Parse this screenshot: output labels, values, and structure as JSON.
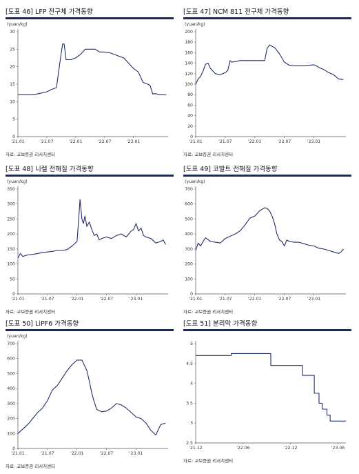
{
  "source_label": "자료: 교보증권 리서치센터",
  "chart_data": [
    {
      "type": "line",
      "title": "[도표 46] LFP 전구체 가격동향",
      "unit_label": "(yuan/kg)",
      "xlabels": [
        "'21.01",
        "'21.07",
        "'22.01",
        "'22.07",
        "'23.01"
      ],
      "xtick_pos": [
        0,
        6,
        12,
        18,
        24
      ],
      "x_range": [
        0,
        31.2
      ],
      "ylim": [
        0,
        30
      ],
      "yticks": [
        0,
        5,
        10,
        15,
        20,
        25,
        30
      ],
      "color": "#1f2f66",
      "series": [
        {
          "x": [
            0,
            3,
            4,
            5,
            6,
            7,
            8,
            9,
            9.3,
            9.6,
            10,
            11,
            12,
            13,
            14,
            15,
            16,
            17,
            18,
            19,
            20,
            21,
            22,
            23,
            24,
            25,
            26,
            27,
            27.5,
            28,
            28.5,
            29.5,
            30.8
          ],
          "y": [
            12,
            12,
            12.2,
            12.5,
            12.8,
            13.5,
            14,
            24,
            26.5,
            26.5,
            22,
            22,
            22.5,
            23.5,
            25,
            25,
            25,
            24.2,
            24.2,
            24,
            23.5,
            23,
            22.5,
            21,
            19.5,
            18.5,
            15.5,
            15,
            14.5,
            12.2,
            12.3,
            12,
            12
          ]
        }
      ]
    },
    {
      "type": "line",
      "title": "[도표 47] NCM 811 전구체 가격동향",
      "unit_label": "(yuan/kg)",
      "xlabels": [
        "'21.01",
        "'21.07",
        "'22.01",
        "'22.07",
        "'23.01"
      ],
      "xtick_pos": [
        0,
        6,
        12,
        18,
        24
      ],
      "x_range": [
        0,
        30.5
      ],
      "ylim": [
        0,
        200
      ],
      "yticks": [
        0,
        20,
        40,
        60,
        80,
        100,
        120,
        140,
        160,
        180,
        200
      ],
      "color": "#1f2f66",
      "series": [
        {
          "x": [
            0,
            0.5,
            1,
            1.5,
            2,
            2.5,
            3,
            4,
            5,
            6,
            6.5,
            7,
            7.3,
            8,
            9,
            10,
            11,
            12,
            13,
            14,
            14.5,
            15,
            15.5,
            16,
            17,
            18,
            19,
            20,
            21,
            22,
            23,
            24,
            24.5,
            25,
            26,
            27,
            28,
            29,
            30
          ],
          "y": [
            100,
            110,
            115,
            125,
            138,
            140,
            130,
            120,
            118,
            122,
            126,
            145,
            142,
            143,
            145,
            145,
            145,
            145,
            145,
            145,
            168,
            175,
            172,
            170,
            158,
            142,
            136,
            135,
            135,
            135,
            136,
            137,
            135,
            132,
            128,
            122,
            118,
            110,
            109
          ]
        }
      ]
    },
    {
      "type": "line",
      "title": "[도표 48] 니켈 전해질 가격동향",
      "unit_label": "(yuan/kg)",
      "xlabels": [
        "'21.01",
        "'21.07",
        "'22.01",
        "'22.07",
        "'23.01"
      ],
      "xtick_pos": [
        0,
        6,
        12,
        18,
        24
      ],
      "x_range": [
        0,
        30.5
      ],
      "ylim": [
        0,
        350
      ],
      "yticks": [
        0,
        50,
        100,
        150,
        200,
        250,
        300,
        350
      ],
      "color": "#1f2f66",
      "series": [
        {
          "x": [
            0,
            0.5,
            1,
            1.5,
            2,
            3,
            4,
            5,
            6,
            7,
            8,
            9,
            10,
            11,
            12,
            12.3,
            12.6,
            13,
            13.3,
            13.6,
            14,
            14.5,
            15,
            15.5,
            16,
            16.5,
            17,
            18,
            19,
            20,
            21,
            22,
            23,
            23.5,
            24,
            24.5,
            25,
            25.5,
            26,
            27,
            28,
            29,
            29.5,
            30
          ],
          "y": [
            120,
            135,
            125,
            128,
            130,
            132,
            135,
            138,
            140,
            142,
            145,
            145,
            148,
            160,
            175,
            240,
            315,
            250,
            235,
            260,
            225,
            240,
            215,
            195,
            200,
            180,
            185,
            190,
            185,
            195,
            200,
            190,
            210,
            215,
            235,
            210,
            220,
            195,
            190,
            185,
            170,
            175,
            180,
            165
          ]
        }
      ]
    },
    {
      "type": "line",
      "title": "[도표 49] 코발트 전해질 가격동향",
      "unit_label": "(yuan/kg)",
      "xlabels": [
        "'21.01",
        "'21.07",
        "'22.01",
        "'22.07",
        "'23.01"
      ],
      "xtick_pos": [
        0,
        6,
        12,
        18,
        24
      ],
      "x_range": [
        0,
        30.5
      ],
      "ylim": [
        0,
        700
      ],
      "yticks": [
        0,
        100,
        200,
        300,
        400,
        500,
        600,
        700
      ],
      "color": "#1f2f66",
      "series": [
        {
          "x": [
            0,
            0.5,
            1,
            1.5,
            2,
            3,
            4,
            5,
            6,
            7,
            8,
            9,
            10,
            11,
            12,
            13,
            14,
            14.5,
            15,
            15.5,
            16,
            16.5,
            17,
            17.5,
            18,
            18.5,
            19,
            20,
            21,
            22,
            23,
            24,
            25,
            26,
            27,
            28,
            28.5,
            29,
            29.5,
            30
          ],
          "y": [
            290,
            340,
            320,
            350,
            375,
            350,
            345,
            340,
            370,
            385,
            400,
            420,
            460,
            505,
            520,
            555,
            575,
            570,
            555,
            520,
            470,
            400,
            360,
            350,
            320,
            360,
            350,
            345,
            345,
            335,
            325,
            320,
            305,
            300,
            290,
            280,
            275,
            270,
            280,
            300
          ]
        }
      ]
    },
    {
      "type": "line",
      "title": "[도표 50] LiPF6 가격동향",
      "unit_label": "(yuan/kg)",
      "xlabels": [
        "'21.01",
        "'21.07",
        "'22.01",
        "'22.07",
        "'23.01"
      ],
      "xtick_pos": [
        0,
        6,
        12,
        18,
        24
      ],
      "x_range": [
        0,
        30.5
      ],
      "ylim": [
        0,
        700
      ],
      "yticks": [
        0,
        100,
        200,
        300,
        400,
        500,
        600,
        700
      ],
      "color": "#1f2f66",
      "series": [
        {
          "x": [
            0,
            1,
            2,
            3,
            4,
            5,
            6,
            7,
            8,
            9,
            10,
            11,
            12,
            13,
            14,
            14.5,
            15,
            15.5,
            16,
            17,
            18,
            19,
            20,
            21,
            22,
            23,
            24,
            25,
            26,
            27,
            28,
            29,
            30
          ],
          "y": [
            100,
            130,
            160,
            200,
            240,
            270,
            320,
            390,
            420,
            470,
            520,
            560,
            590,
            590,
            520,
            450,
            370,
            310,
            260,
            245,
            250,
            270,
            300,
            290,
            270,
            240,
            210,
            200,
            170,
            120,
            90,
            160,
            170
          ]
        }
      ]
    },
    {
      "type": "line",
      "step": true,
      "title": "[도표 51] 분리막 가격동향",
      "unit_label": "",
      "xlabels": [
        "'21.12",
        "'22.06",
        "'22.12",
        "'23.06"
      ],
      "xtick_pos": [
        0,
        6,
        12,
        18
      ],
      "x_range": [
        0,
        19
      ],
      "ylim": [
        2.5,
        5
      ],
      "yticks": [
        2.5,
        3,
        3.5,
        4,
        4.5,
        5
      ],
      "color": "#1f2f66",
      "series": [
        {
          "x": [
            0,
            4.5,
            9.5,
            13.5,
            15,
            15.6,
            16,
            16.6,
            17,
            17.6,
            19
          ],
          "y": [
            4.7,
            4.75,
            4.45,
            4.2,
            3.75,
            3.5,
            3.35,
            3.2,
            3.05,
            3.05,
            3.05
          ]
        }
      ]
    }
  ]
}
